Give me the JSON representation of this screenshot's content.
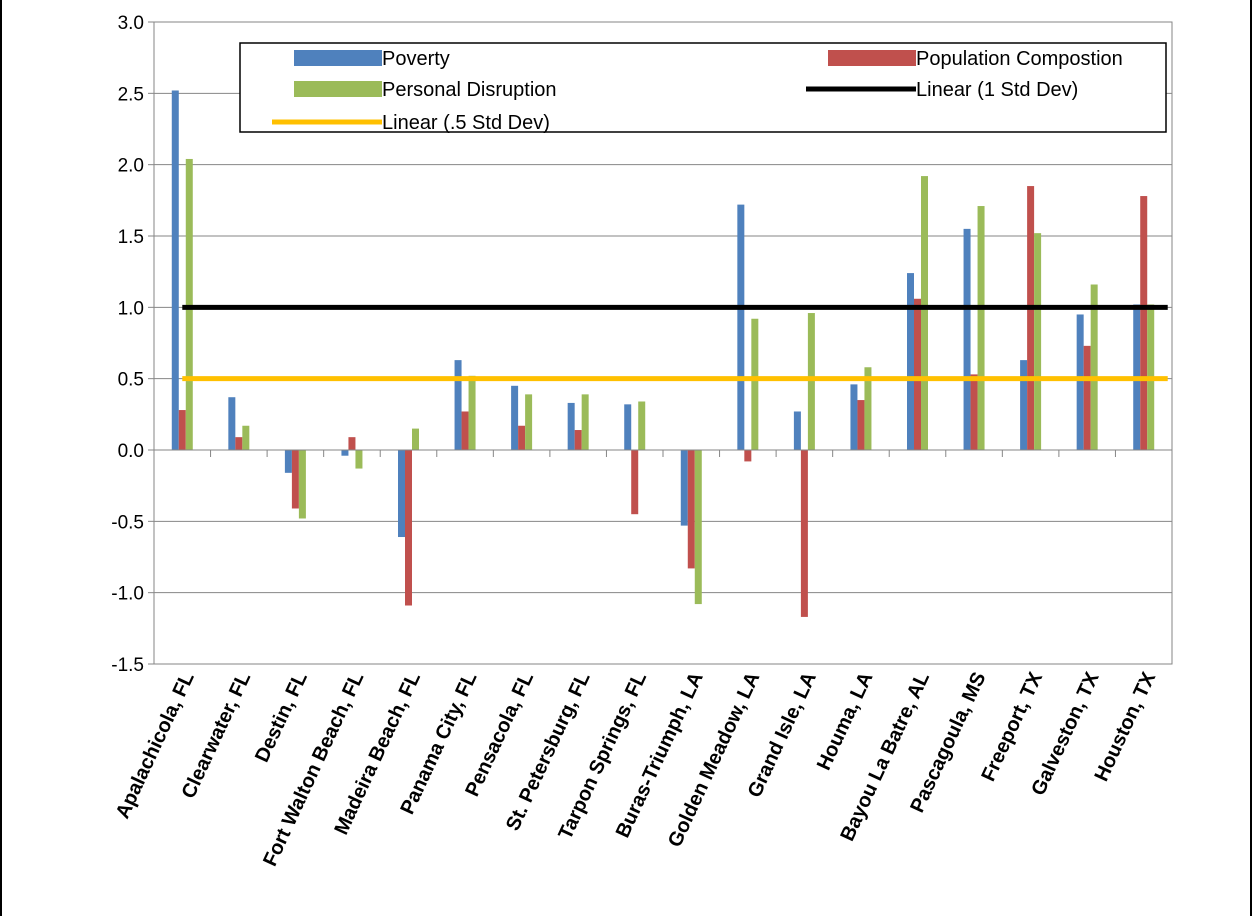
{
  "chart_data": {
    "type": "bar",
    "title": "",
    "xlabel": "",
    "ylabel": "",
    "ylim": [
      -1.5,
      3.0
    ],
    "ytick_step": 0.5,
    "yticks": [
      "-1.5",
      "-1.0",
      "-0.5",
      "0.0",
      "0.5",
      "1.0",
      "1.5",
      "2.0",
      "2.5",
      "3.0"
    ],
    "grid": true,
    "legend_position": "top-right",
    "categories": [
      "Apalachicola, FL",
      "Clearwater, FL",
      "Destin, FL",
      "Fort Walton Beach, FL",
      "Madeira Beach, FL",
      "Panama City, FL",
      "Pensacola, FL",
      "St. Petersburg, FL",
      "Tarpon Springs, FL",
      "Buras-Triumph, LA",
      "Golden Meadow, LA",
      "Grand Isle, LA",
      "Houma, LA",
      "Bayou La Batre, AL",
      "Pascagoula, MS",
      "Freeport, TX",
      "Galveston, TX",
      "Houston, TX"
    ],
    "series": [
      {
        "name": "Poverty",
        "color": "#4f81bd",
        "values": [
          2.52,
          0.37,
          -0.16,
          -0.04,
          -0.61,
          0.63,
          0.45,
          0.33,
          0.32,
          -0.53,
          1.72,
          0.27,
          0.46,
          1.24,
          1.55,
          0.63,
          0.95,
          1.02
        ]
      },
      {
        "name": "Population Compostion",
        "color": "#c0504d",
        "values": [
          0.28,
          0.09,
          -0.41,
          0.09,
          -1.09,
          0.27,
          0.17,
          0.14,
          -0.45,
          -0.83,
          -0.08,
          -1.17,
          0.35,
          1.06,
          0.53,
          1.85,
          0.73,
          1.78
        ]
      },
      {
        "name": "Personal Disruption",
        "color": "#9bbb59",
        "values": [
          2.04,
          0.17,
          -0.48,
          -0.13,
          0.15,
          0.52,
          0.39,
          0.39,
          0.34,
          -1.08,
          0.92,
          0.96,
          0.58,
          1.92,
          1.71,
          1.52,
          1.16,
          1.02
        ]
      }
    ],
    "lines": [
      {
        "name": "Linear (1 Std Dev)",
        "color": "#000000",
        "value": 1.0
      },
      {
        "name": "Linear (.5 Std Dev)",
        "color": "#ffc000",
        "value": 0.5
      }
    ]
  }
}
